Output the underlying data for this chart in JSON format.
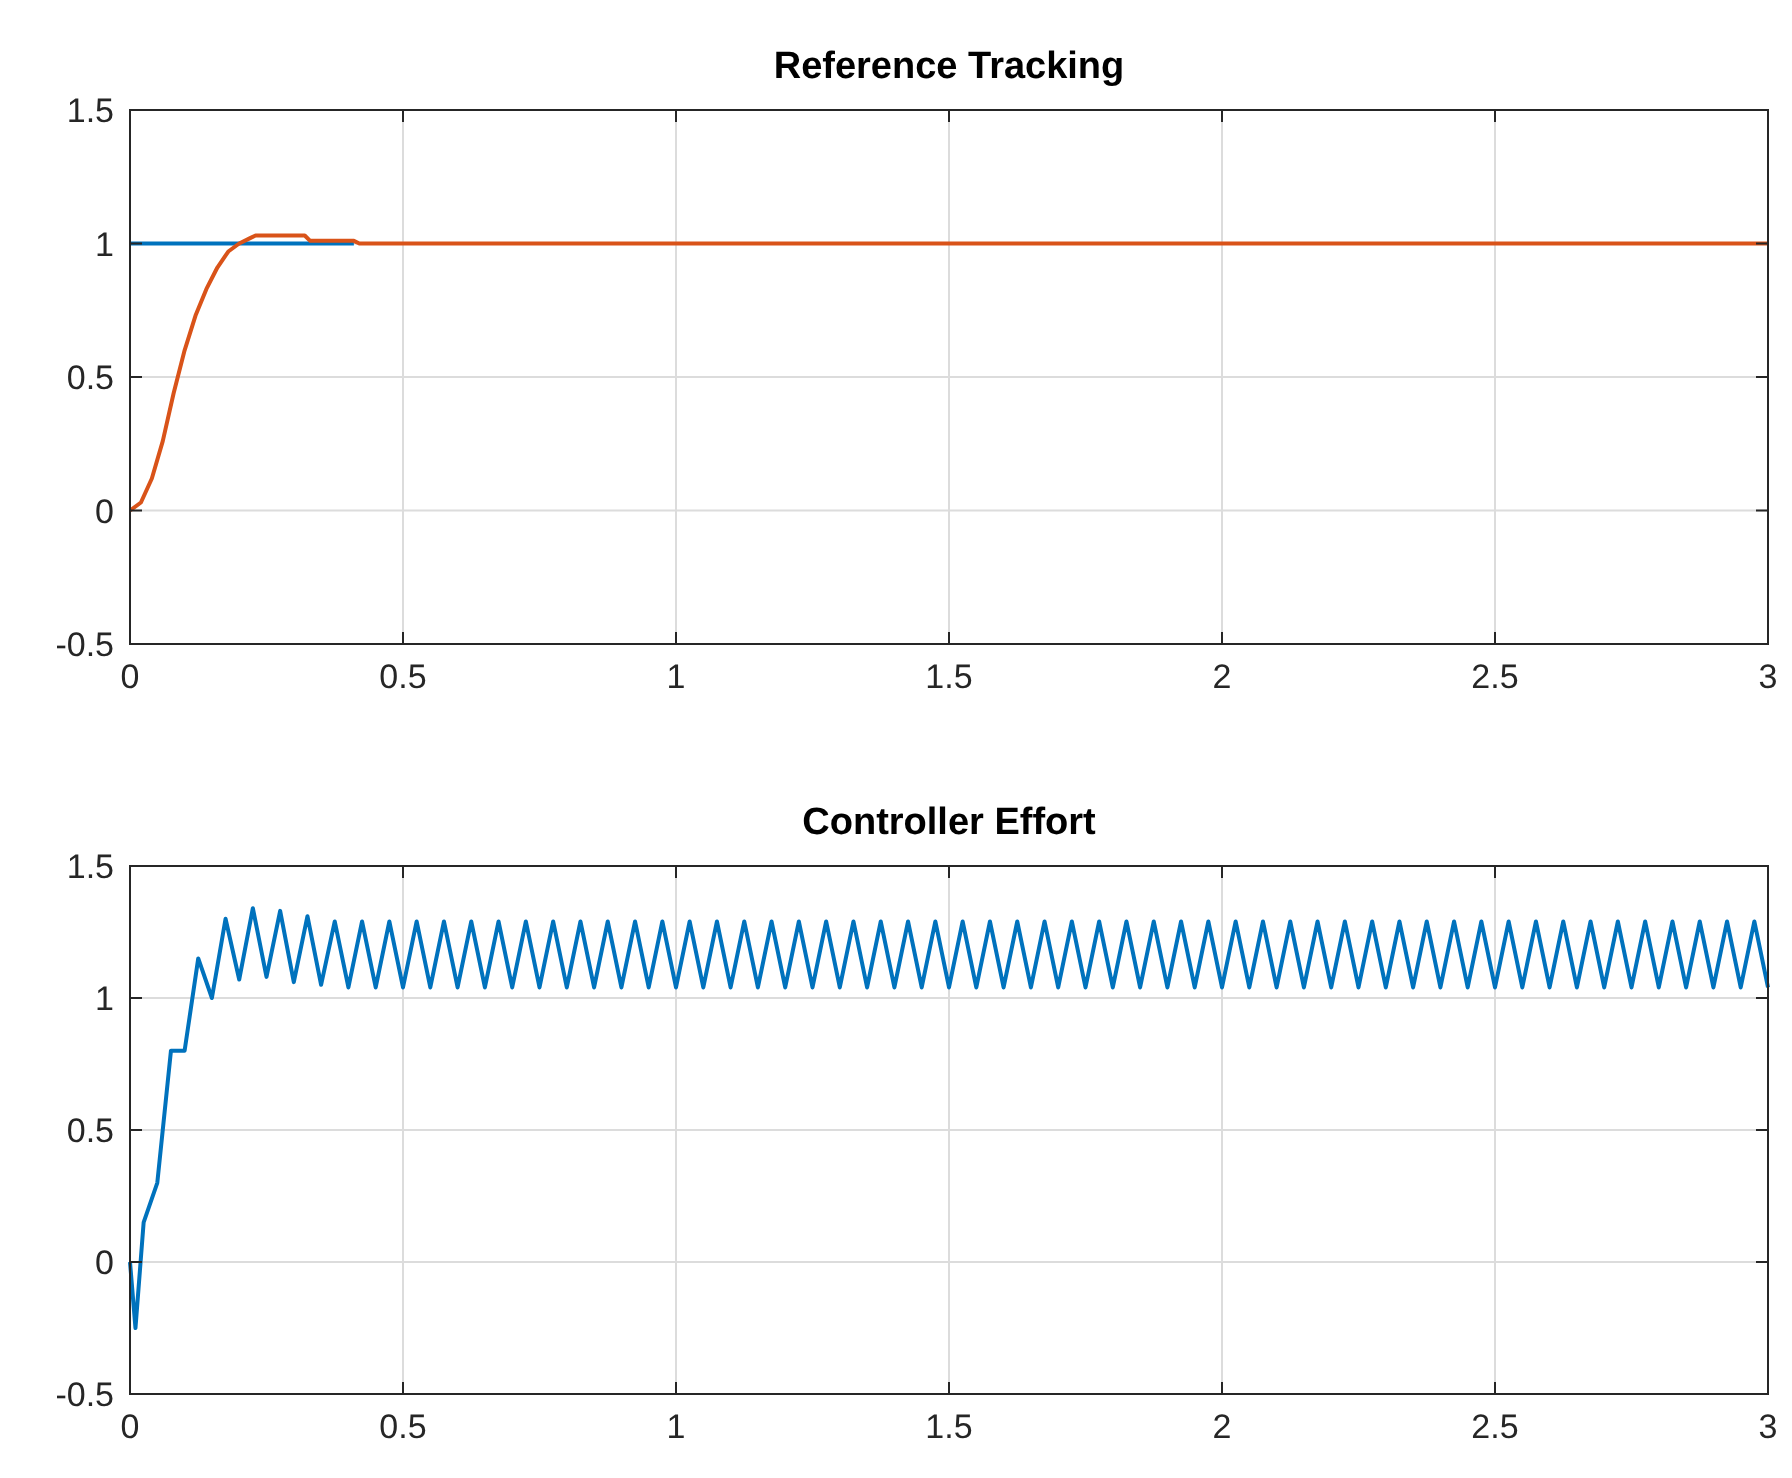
{
  "chart_data": [
    {
      "type": "line",
      "title": "Reference Tracking",
      "xlim": [
        0,
        3
      ],
      "xticks": [
        0,
        0.5,
        1,
        1.5,
        2,
        2.5,
        3
      ],
      "ylim": [
        -0.5,
        1.5
      ],
      "yticks": [
        -0.5,
        0,
        0.5,
        1,
        1.5
      ],
      "grid": true,
      "series": [
        {
          "color": "#0072bd",
          "x": [
            0,
            0.41
          ],
          "values": [
            1,
            1
          ]
        },
        {
          "color": "#d95319",
          "x": [
            0,
            0.02,
            0.04,
            0.06,
            0.08,
            0.1,
            0.12,
            0.14,
            0.16,
            0.18,
            0.2,
            0.22,
            0.23,
            0.28,
            0.32,
            0.33,
            0.41,
            0.42,
            3
          ],
          "values": [
            0,
            0.03,
            0.12,
            0.26,
            0.44,
            0.6,
            0.73,
            0.83,
            0.91,
            0.97,
            1,
            1.02,
            1.03,
            1.03,
            1.03,
            1.01,
            1.01,
            1,
            1
          ]
        }
      ]
    },
    {
      "type": "line",
      "title": "Controller Effort",
      "xlim": [
        0,
        3
      ],
      "xticks": [
        0,
        0.5,
        1,
        1.5,
        2,
        2.5,
        3
      ],
      "ylim": [
        -0.5,
        1.5
      ],
      "yticks": [
        -0.5,
        0,
        0.5,
        1,
        1.5
      ],
      "grid": true,
      "series": [
        {
          "color": "#0072bd",
          "x": [
            0,
            0.01,
            0.025,
            0.05,
            0.075,
            0.1,
            0.125,
            0.15,
            0.175,
            0.2,
            0.225,
            0.25,
            0.275,
            0.3,
            0.325,
            0.35,
            0.375,
            0.4,
            0.425,
            0.45,
            0.475,
            0.5,
            0.525,
            0.55,
            0.575,
            0.6,
            0.625,
            0.65,
            0.675,
            0.7,
            0.725,
            0.75,
            0.775,
            0.8,
            0.825,
            0.85,
            0.875,
            0.9,
            0.925,
            0.95,
            0.975,
            1,
            1.025,
            1.05,
            1.075,
            1.1,
            1.125,
            1.15,
            1.175,
            1.2,
            1.225,
            1.25,
            1.275,
            1.3,
            1.325,
            1.35,
            1.375,
            1.4,
            1.425,
            1.45,
            1.475,
            1.5,
            1.525,
            1.55,
            1.575,
            1.6,
            1.625,
            1.65,
            1.675,
            1.7,
            1.725,
            1.75,
            1.775,
            1.8,
            1.825,
            1.85,
            1.875,
            1.9,
            1.925,
            1.95,
            1.975,
            2,
            2.025,
            2.05,
            2.075,
            2.1,
            2.125,
            2.15,
            2.175,
            2.2,
            2.225,
            2.25,
            2.275,
            2.3,
            2.325,
            2.35,
            2.375,
            2.4,
            2.425,
            2.45,
            2.475,
            2.5,
            2.525,
            2.55,
            2.575,
            2.6,
            2.625,
            2.65,
            2.675,
            2.7,
            2.725,
            2.75,
            2.775,
            2.8,
            2.825,
            2.85,
            2.875,
            2.9,
            2.925,
            2.95,
            2.975,
            3
          ],
          "values": [
            0,
            -0.25,
            0.15,
            0.3,
            0.8,
            0.8,
            1.15,
            1,
            1.3,
            1.07,
            1.34,
            1.08,
            1.33,
            1.06,
            1.31,
            1.05,
            1.29,
            1.04,
            1.29,
            1.04,
            1.29,
            1.04,
            1.29,
            1.04,
            1.29,
            1.04,
            1.29,
            1.04,
            1.29,
            1.04,
            1.29,
            1.04,
            1.29,
            1.04,
            1.29,
            1.04,
            1.29,
            1.04,
            1.29,
            1.04,
            1.29,
            1.04,
            1.29,
            1.04,
            1.29,
            1.04,
            1.29,
            1.04,
            1.29,
            1.04,
            1.29,
            1.04,
            1.29,
            1.04,
            1.29,
            1.04,
            1.29,
            1.04,
            1.29,
            1.04,
            1.29,
            1.04,
            1.29,
            1.04,
            1.29,
            1.04,
            1.29,
            1.04,
            1.29,
            1.04,
            1.29,
            1.04,
            1.29,
            1.04,
            1.29,
            1.04,
            1.29,
            1.04,
            1.29,
            1.04,
            1.29,
            1.04,
            1.29,
            1.04,
            1.29,
            1.04,
            1.29,
            1.04,
            1.29,
            1.04,
            1.29,
            1.04,
            1.29,
            1.04,
            1.29,
            1.04,
            1.29,
            1.04,
            1.29,
            1.04,
            1.29,
            1.04,
            1.29,
            1.04,
            1.29,
            1.04,
            1.29,
            1.04,
            1.29,
            1.04,
            1.29,
            1.04,
            1.29,
            1.04,
            1.29,
            1.04,
            1.29,
            1.04,
            1.29,
            1.04,
            1.29,
            1.04
          ]
        }
      ]
    }
  ]
}
